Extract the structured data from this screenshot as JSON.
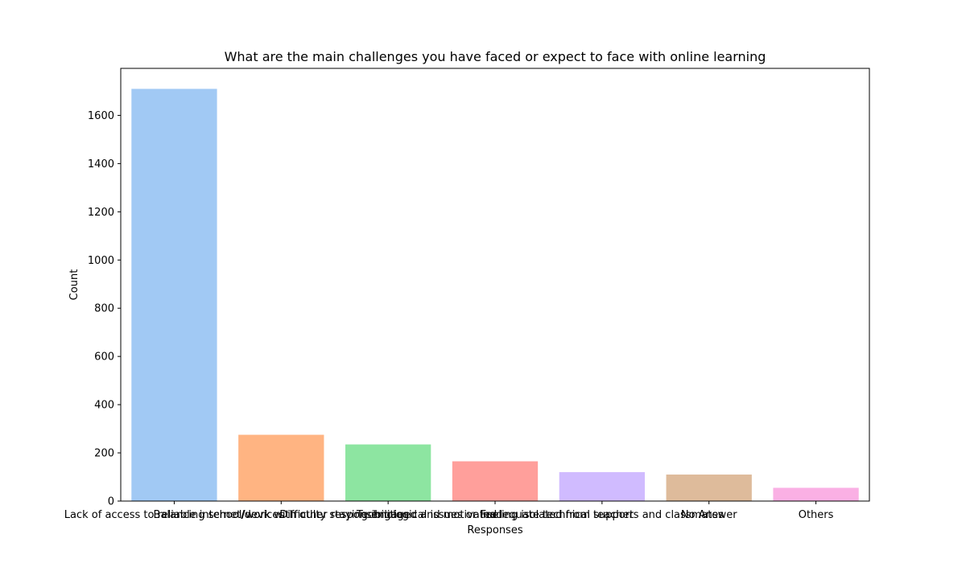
{
  "chart_data": {
    "type": "bar",
    "title": "What are the main challenges you have faced or expect to face with online learning",
    "xlabel": "Responses",
    "ylabel": "Count",
    "categories": [
      "Lack of access to reliable internet/devices",
      "Balancing school/work with other responsibilities",
      "Difficulty staying engaged and motivated",
      "Technological issues or inadequate technical support",
      "Feeling isolated from teachers and classmates",
      "No Answer",
      "Others"
    ],
    "values": [
      1710,
      275,
      235,
      165,
      120,
      110,
      55
    ],
    "colors": [
      "#a1c9f4",
      "#ffb482",
      "#8de5a1",
      "#ff9f9b",
      "#d0bbff",
      "#debb9b",
      "#fab0e4"
    ],
    "ylim": [
      0,
      1795
    ],
    "yticks": [
      0,
      200,
      400,
      600,
      800,
      1000,
      1200,
      1400,
      1600
    ],
    "grid": false,
    "legend": "none"
  }
}
